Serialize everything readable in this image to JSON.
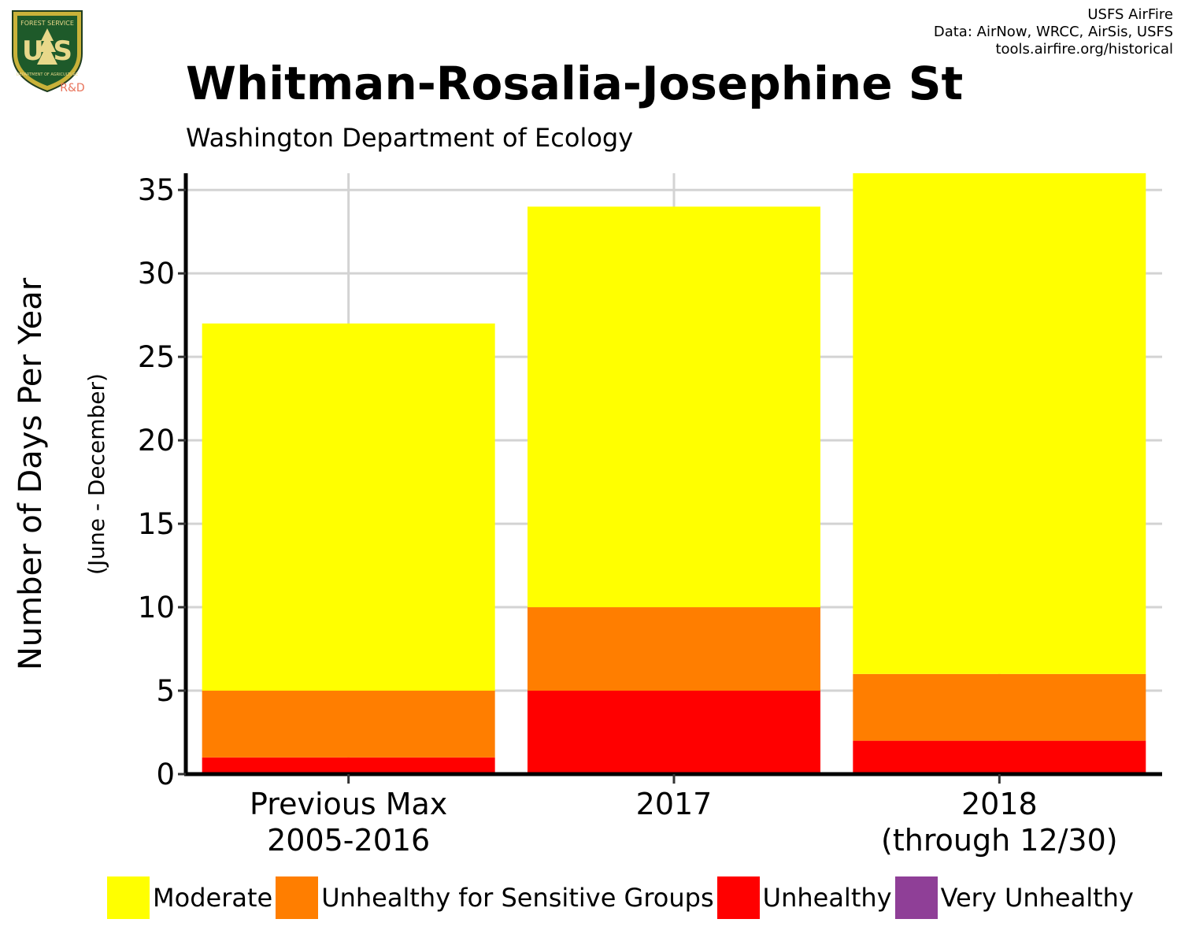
{
  "header": {
    "title": "Whitman-Rosalia-Josephine St",
    "subtitle": "Washington Department of Ecology",
    "credits": [
      "USFS AirFire",
      "Data: AirNow, WRCC, AirSis, USFS",
      "tools.airfire.org/historical"
    ],
    "logo": {
      "top_text": "FOREST SERVICE",
      "letters": "U S",
      "bottom_text": "DEPARTMENT OF AGRICULTURE",
      "tag": "R&D",
      "icon": "forest-service-shield-icon"
    }
  },
  "chart_data": {
    "type": "bar",
    "stacked": true,
    "ylabel": "Number of Days Per Year",
    "ylabel_sub": "(June - December)",
    "ylim": [
      0,
      36
    ],
    "yticks": [
      0,
      5,
      10,
      15,
      20,
      25,
      30,
      35
    ],
    "grid": true,
    "categories": [
      [
        "Previous Max",
        "2005-2016"
      ],
      [
        "2017"
      ],
      [
        "2018",
        "(through 12/30)"
      ]
    ],
    "series": [
      {
        "name": "Unhealthy",
        "color": "#FF0000",
        "values": [
          1,
          5,
          2
        ]
      },
      {
        "name": "Unhealthy for Sensitive Groups",
        "color": "#FF7E00",
        "values": [
          4,
          5,
          4
        ]
      },
      {
        "name": "Moderate",
        "color": "#FFFF00",
        "values": [
          22,
          24,
          30
        ]
      },
      {
        "name": "Very Unhealthy",
        "color": "#8F3F97",
        "values": [
          0,
          0,
          0
        ]
      }
    ],
    "legend": {
      "position": "bottom",
      "items": [
        {
          "label": "Moderate",
          "color": "#FFFF00"
        },
        {
          "label": "Unhealthy for Sensitive Groups",
          "color": "#FF7E00"
        },
        {
          "label": "Unhealthy",
          "color": "#FF0000"
        },
        {
          "label": "Very Unhealthy",
          "color": "#8F3F97"
        }
      ]
    }
  }
}
